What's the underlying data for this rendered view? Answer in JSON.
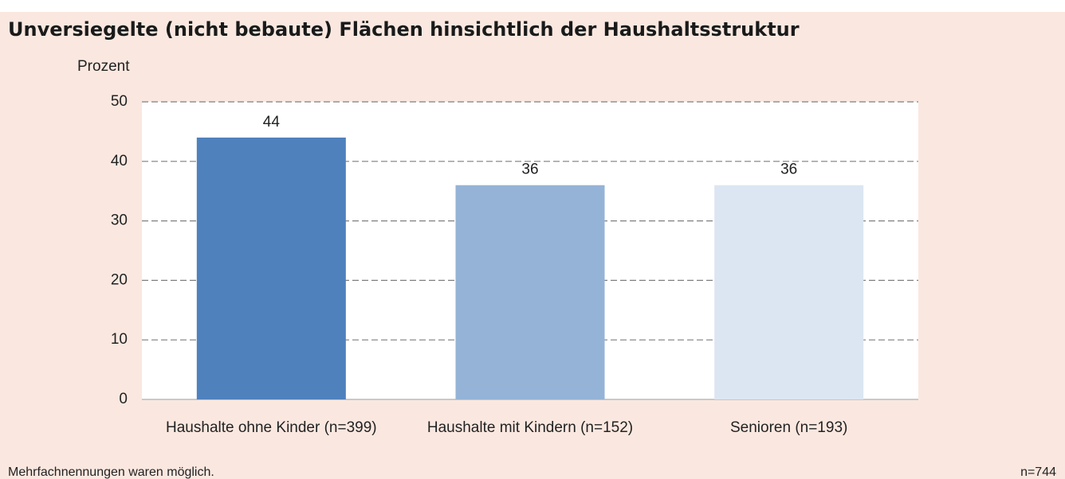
{
  "chart_data": {
    "type": "bar",
    "title": "Unversiegelte (nicht bebaute) Flächen hinsichtlich der Haushaltsstruktur",
    "y_axis_label": "Prozent",
    "categories": [
      "Haushalte ohne Kinder (n=399)",
      "Haushalte mit Kindern (n=152)",
      "Senioren (n=193)"
    ],
    "values": [
      44,
      36,
      36
    ],
    "colors": [
      "#4f81bd",
      "#95b3d7",
      "#dce6f2"
    ],
    "ylim": [
      0,
      50
    ],
    "yticks": [
      0,
      10,
      20,
      30,
      40,
      50
    ],
    "grid": true,
    "footnote": "Mehrfachnennungen waren möglich.",
    "sample_size": "n=744"
  }
}
